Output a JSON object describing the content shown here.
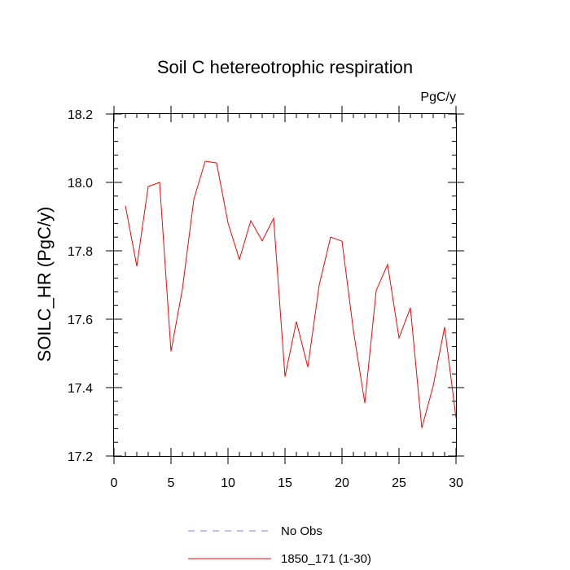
{
  "chart_data": {
    "type": "line",
    "title": "Soil C hetereotrophic respiration",
    "units_label": "PgC/y",
    "xlabel": "",
    "ylabel": "SOILC_HR  (PgC/y)",
    "xlim": [
      0,
      30
    ],
    "ylim": [
      17.2,
      18.2
    ],
    "x_ticks": [
      0,
      5,
      10,
      15,
      20,
      25,
      30
    ],
    "x_tick_labels": [
      "0",
      "5",
      "10",
      "15",
      "20",
      "25",
      "30"
    ],
    "y_ticks": [
      17.2,
      17.4,
      17.6,
      17.8,
      18.0,
      18.2
    ],
    "y_tick_labels": [
      "17.2",
      "17.4",
      "17.6",
      "17.8",
      "18.0",
      "18.2"
    ],
    "grid": false,
    "legend_position": "bottom-center",
    "series": [
      {
        "name": "1850_171 (1-30)",
        "color": "#ff0000",
        "style": "solid",
        "x": [
          1,
          2,
          3,
          4,
          5,
          6,
          7,
          8,
          9,
          10,
          11,
          12,
          13,
          14,
          15,
          16,
          17,
          18,
          19,
          20,
          21,
          22,
          23,
          24,
          25,
          26,
          27,
          28,
          29,
          30
        ],
        "values": [
          17.932,
          17.755,
          17.988,
          18.0,
          17.506,
          17.688,
          17.95,
          18.062,
          18.057,
          17.882,
          17.775,
          17.888,
          17.829,
          17.895,
          17.432,
          17.593,
          17.46,
          17.7,
          17.84,
          17.828,
          17.567,
          17.355,
          17.684,
          17.76,
          17.545,
          17.633,
          17.282,
          17.405,
          17.577,
          17.311
        ]
      },
      {
        "name": "No Obs",
        "color": "#8080ff",
        "style": "dashed",
        "x": [],
        "values": []
      }
    ]
  }
}
